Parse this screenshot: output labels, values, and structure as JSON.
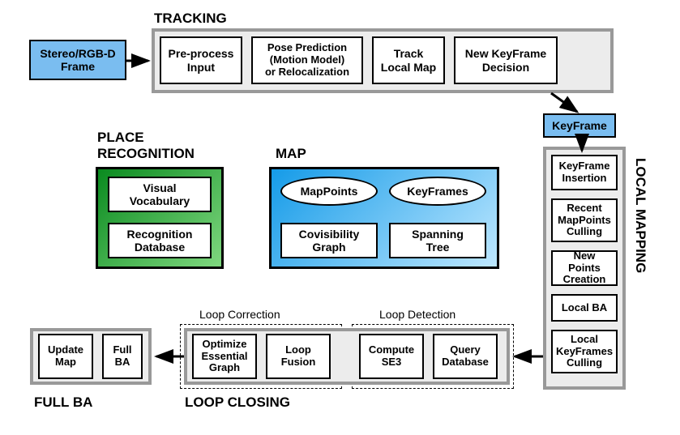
{
  "titles": {
    "tracking": "TRACKING",
    "place_recognition": "PLACE\nRECOGNITION",
    "map": "MAP",
    "local_mapping": "LOCAL MAPPING",
    "loop_closing": "LOOP CLOSING",
    "full_ba": "FULL BA",
    "loop_correction": "Loop Correction",
    "loop_detection": "Loop Detection"
  },
  "input": {
    "label": "Stereo/RGB-D\nFrame",
    "bg": "#7abdf0"
  },
  "tracking": {
    "frame_bg": "#ececec",
    "preprocess": "Pre-process\nInput",
    "pose": "Pose Prediction\n(Motion Model)\nor Relocalization",
    "track": "Track\nLocal Map",
    "keyframe_decision": "New KeyFrame\nDecision"
  },
  "keyframe": {
    "label": "KeyFrame",
    "bg": "#7abdf0"
  },
  "place_recognition": {
    "bg_gradient_from": "#0a8a1f",
    "bg_gradient_to": "#7fd87f",
    "vocab": "Visual\nVocabulary",
    "db": "Recognition\nDatabase"
  },
  "map": {
    "bg_gradient_from": "#159be8",
    "bg_gradient_to": "#bde7ff",
    "mappoints": "MapPoints",
    "keyframes": "KeyFrames",
    "covis": "Covisibility\nGraph",
    "spanning": "Spanning\nTree"
  },
  "local_mapping": {
    "kf_insertion": "KeyFrame\nInsertion",
    "culling_recent": "Recent\nMapPoints\nCulling",
    "new_points": "New Points\nCreation",
    "local_ba": "Local BA",
    "kf_culling": "Local\nKeyFrames\nCulling"
  },
  "loop_closing": {
    "optimize": "Optimize\nEssential\nGraph",
    "fusion": "Loop\nFusion",
    "se3": "Compute\nSE3",
    "query": "Query\nDatabase"
  },
  "full_ba": {
    "update_map": "Update\nMap",
    "full_ba_box": "Full\nBA"
  },
  "arrows": {
    "color": "#000000",
    "stroke_width": 3
  }
}
